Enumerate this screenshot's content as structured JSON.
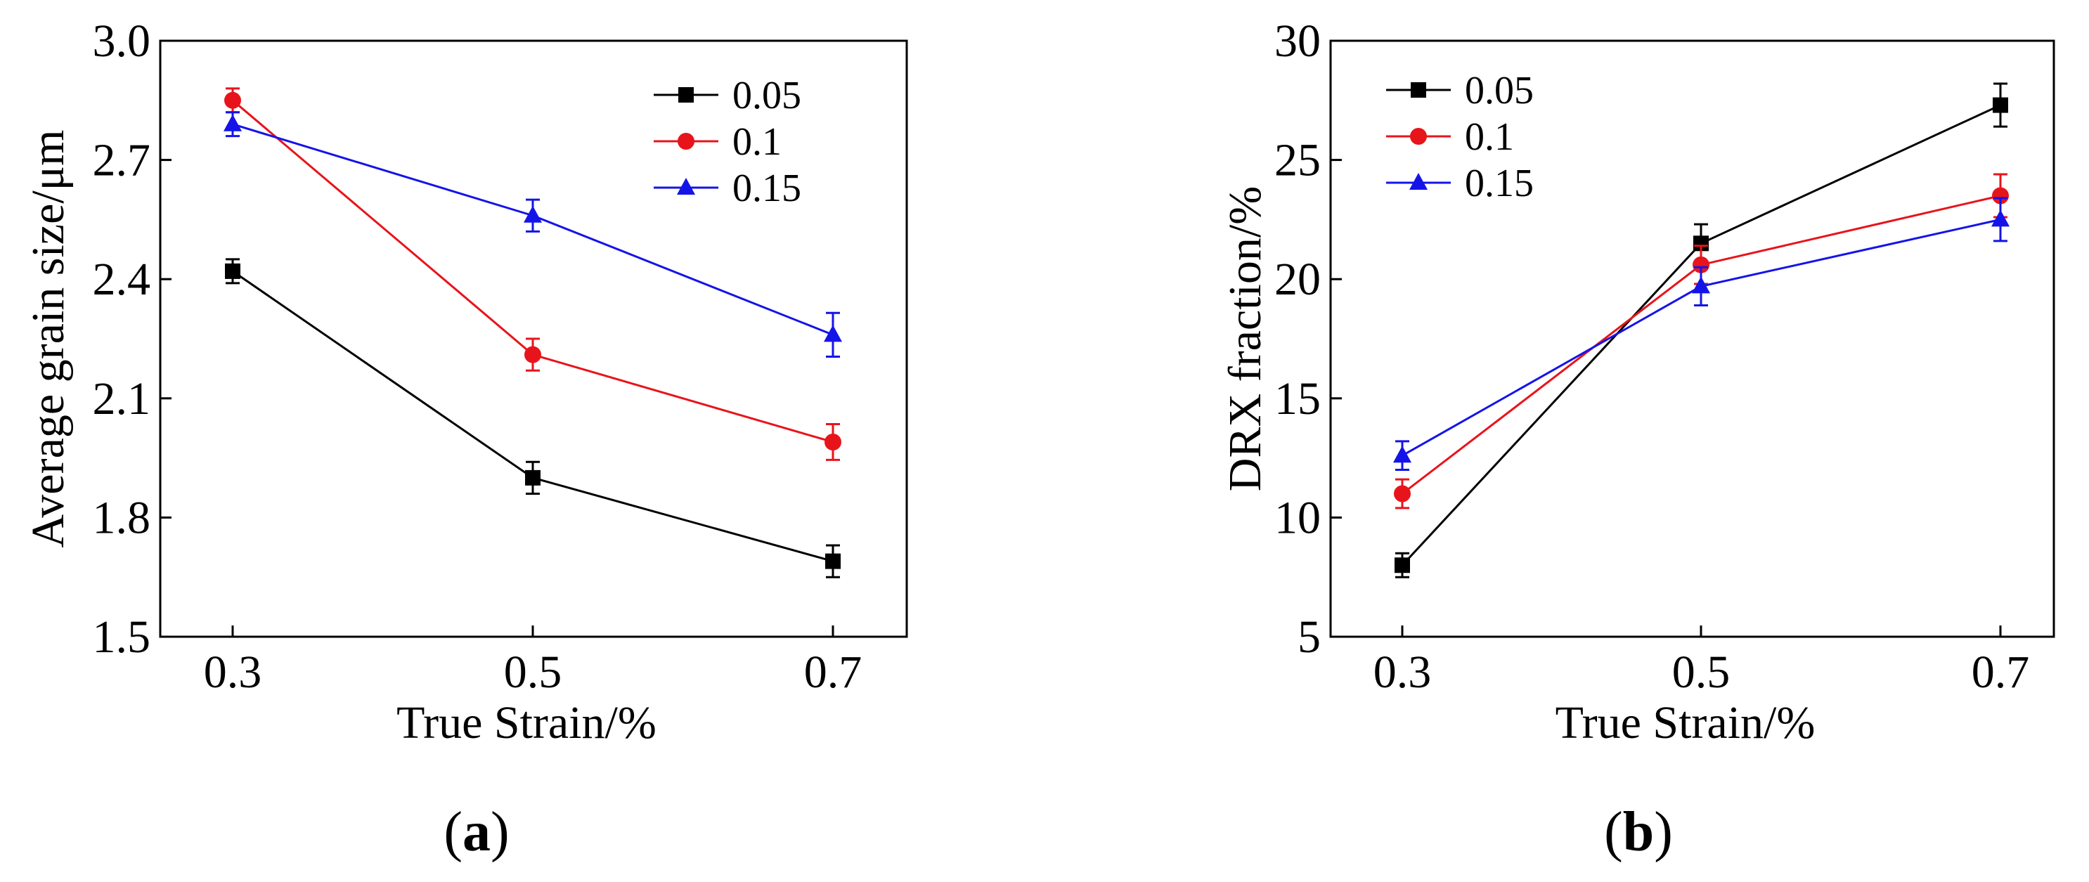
{
  "chart_data": [
    {
      "type": "line",
      "panel_label": "a",
      "xlabel": "True Strain/%",
      "ylabel": "Average grain size/μm",
      "categories": [
        "0.3",
        "0.5",
        "0.7"
      ],
      "x": [
        0.3,
        0.5,
        0.7
      ],
      "ylim": [
        1.5,
        3.0
      ],
      "yticks": [
        "1.5",
        "1.8",
        "2.1",
        "2.4",
        "2.7",
        "3.0"
      ],
      "legend_position": "top-right",
      "grid": false,
      "series": [
        {
          "name": "0.05",
          "color": "#000000",
          "marker": "square",
          "values": [
            2.42,
            1.9,
            1.69
          ],
          "errors": [
            0.03,
            0.04,
            0.04
          ]
        },
        {
          "name": "0.1",
          "color": "#e8141b",
          "marker": "circle",
          "values": [
            2.85,
            2.21,
            1.99
          ],
          "errors": [
            0.03,
            0.04,
            0.045
          ]
        },
        {
          "name": "0.15",
          "color": "#1414e8",
          "marker": "triangle",
          "values": [
            2.79,
            2.56,
            2.26
          ],
          "errors": [
            0.03,
            0.04,
            0.055
          ]
        }
      ]
    },
    {
      "type": "line",
      "panel_label": "b",
      "xlabel": "True Strain/%",
      "ylabel": "DRX fraction/%",
      "categories": [
        "0.3",
        "0.5",
        "0.7"
      ],
      "x": [
        0.3,
        0.5,
        0.7
      ],
      "ylim": [
        5,
        30
      ],
      "yticks": [
        "5",
        "10",
        "15",
        "20",
        "25",
        "30"
      ],
      "legend_position": "top-left",
      "grid": false,
      "series": [
        {
          "name": "0.05",
          "color": "#000000",
          "marker": "square",
          "values": [
            8.0,
            21.5,
            27.3
          ],
          "errors": [
            0.5,
            0.8,
            0.9
          ]
        },
        {
          "name": "0.1",
          "color": "#e8141b",
          "marker": "circle",
          "values": [
            11.0,
            20.6,
            23.5
          ],
          "errors": [
            0.6,
            0.8,
            0.9
          ]
        },
        {
          "name": "0.15",
          "color": "#1414e8",
          "marker": "triangle",
          "values": [
            12.6,
            19.7,
            22.5
          ],
          "errors": [
            0.6,
            0.8,
            0.9
          ]
        }
      ]
    }
  ]
}
